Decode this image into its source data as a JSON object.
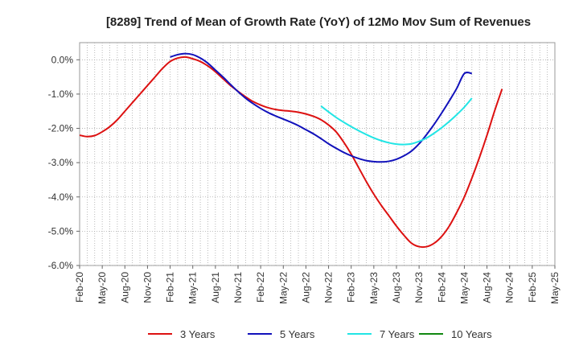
{
  "chart_data": {
    "type": "line",
    "title": "[8289]  Trend of Mean of Growth Rate (YoY) of 12Mo Mov Sum of Revenues",
    "xlabel": "",
    "ylabel": "",
    "ylim": [
      -6.0,
      0.5
    ],
    "y_ticks": [
      "0.0%",
      "-1.0%",
      "-2.0%",
      "-3.0%",
      "-4.0%",
      "-5.0%",
      "-6.0%"
    ],
    "y_tick_values": [
      0,
      -1,
      -2,
      -3,
      -4,
      -5,
      -6
    ],
    "x_ticks": [
      "Feb-20",
      "May-20",
      "Aug-20",
      "Nov-20",
      "Feb-21",
      "May-21",
      "Aug-21",
      "Nov-21",
      "Feb-22",
      "May-22",
      "Aug-22",
      "Nov-22",
      "Feb-23",
      "May-23",
      "Aug-23",
      "Nov-23",
      "Feb-24",
      "May-24",
      "Aug-24",
      "Nov-24",
      "Feb-25",
      "May-25"
    ],
    "grid": true,
    "series": [
      {
        "name": "3 Years",
        "color": "#dd1111",
        "x": [
          0,
          1,
          2,
          3,
          4,
          5,
          6,
          7,
          8,
          9,
          10,
          11,
          12,
          13,
          14,
          15,
          16,
          17,
          18,
          19,
          20,
          21,
          22,
          23,
          24,
          25,
          26,
          27,
          28,
          29,
          30,
          31,
          32,
          33,
          34,
          35,
          36,
          37,
          38,
          39,
          40,
          41,
          42,
          43,
          44,
          45,
          46,
          47,
          48,
          49,
          50,
          51,
          52,
          53,
          54,
          55,
          56,
          57,
          58,
          59,
          60
        ],
        "values": [
          -2.2,
          -2.24,
          -2.21,
          -2.1,
          -1.95,
          -1.75,
          -1.5,
          -1.25,
          -1.0,
          -0.75,
          -0.5,
          -0.25,
          -0.05,
          0.05,
          0.08,
          0.03,
          -0.05,
          -0.18,
          -0.35,
          -0.55,
          -0.75,
          -0.92,
          -1.08,
          -1.22,
          -1.32,
          -1.4,
          -1.45,
          -1.48,
          -1.5,
          -1.53,
          -1.58,
          -1.65,
          -1.75,
          -1.9,
          -2.1,
          -2.4,
          -2.75,
          -3.15,
          -3.55,
          -3.92,
          -4.25,
          -4.55,
          -4.85,
          -5.12,
          -5.35,
          -5.45,
          -5.45,
          -5.35,
          -5.15,
          -4.85,
          -4.45,
          -4.0,
          -3.45,
          -2.85,
          -2.2,
          -1.5,
          -0.85,
          null,
          null,
          null,
          null
        ]
      },
      {
        "name": "5 Years",
        "color": "#1111bb",
        "x": [
          12,
          13,
          14,
          15,
          16,
          17,
          18,
          19,
          20,
          21,
          22,
          23,
          24,
          25,
          26,
          27,
          28,
          29,
          30,
          31,
          32,
          33,
          34,
          35,
          36,
          37,
          38,
          39,
          40,
          41,
          42,
          43,
          44,
          45,
          46,
          47,
          48,
          49,
          50,
          51,
          52,
          53,
          54,
          55,
          56
        ],
        "values": [
          0.08,
          0.15,
          0.18,
          0.15,
          0.05,
          -0.1,
          -0.3,
          -0.5,
          -0.72,
          -0.93,
          -1.12,
          -1.28,
          -1.42,
          -1.54,
          -1.64,
          -1.73,
          -1.82,
          -1.92,
          -2.04,
          -2.16,
          -2.3,
          -2.45,
          -2.58,
          -2.7,
          -2.8,
          -2.88,
          -2.94,
          -2.97,
          -2.98,
          -2.96,
          -2.9,
          -2.8,
          -2.66,
          -2.45,
          -2.18,
          -1.88,
          -1.55,
          -1.2,
          -0.83,
          -0.4,
          -0.4,
          null,
          null,
          null,
          null
        ]
      },
      {
        "name": "7 Years",
        "color": "#22e5e5",
        "x": [
          32,
          33,
          34,
          35,
          36,
          37,
          38,
          39,
          40,
          41,
          42,
          43,
          44,
          45,
          46,
          47,
          48,
          49,
          50,
          51,
          52,
          53,
          54,
          55,
          56
        ],
        "values": [
          -1.35,
          -1.52,
          -1.68,
          -1.82,
          -1.95,
          -2.07,
          -2.18,
          -2.28,
          -2.36,
          -2.42,
          -2.46,
          -2.47,
          -2.45,
          -2.38,
          -2.28,
          -2.14,
          -1.98,
          -1.8,
          -1.6,
          -1.38,
          -1.12,
          null,
          null,
          null,
          null
        ]
      },
      {
        "name": "10 Years",
        "color": "#118811",
        "x": [],
        "values": []
      }
    ],
    "x_domain": [
      0,
      63
    ],
    "legend": "bottom"
  }
}
